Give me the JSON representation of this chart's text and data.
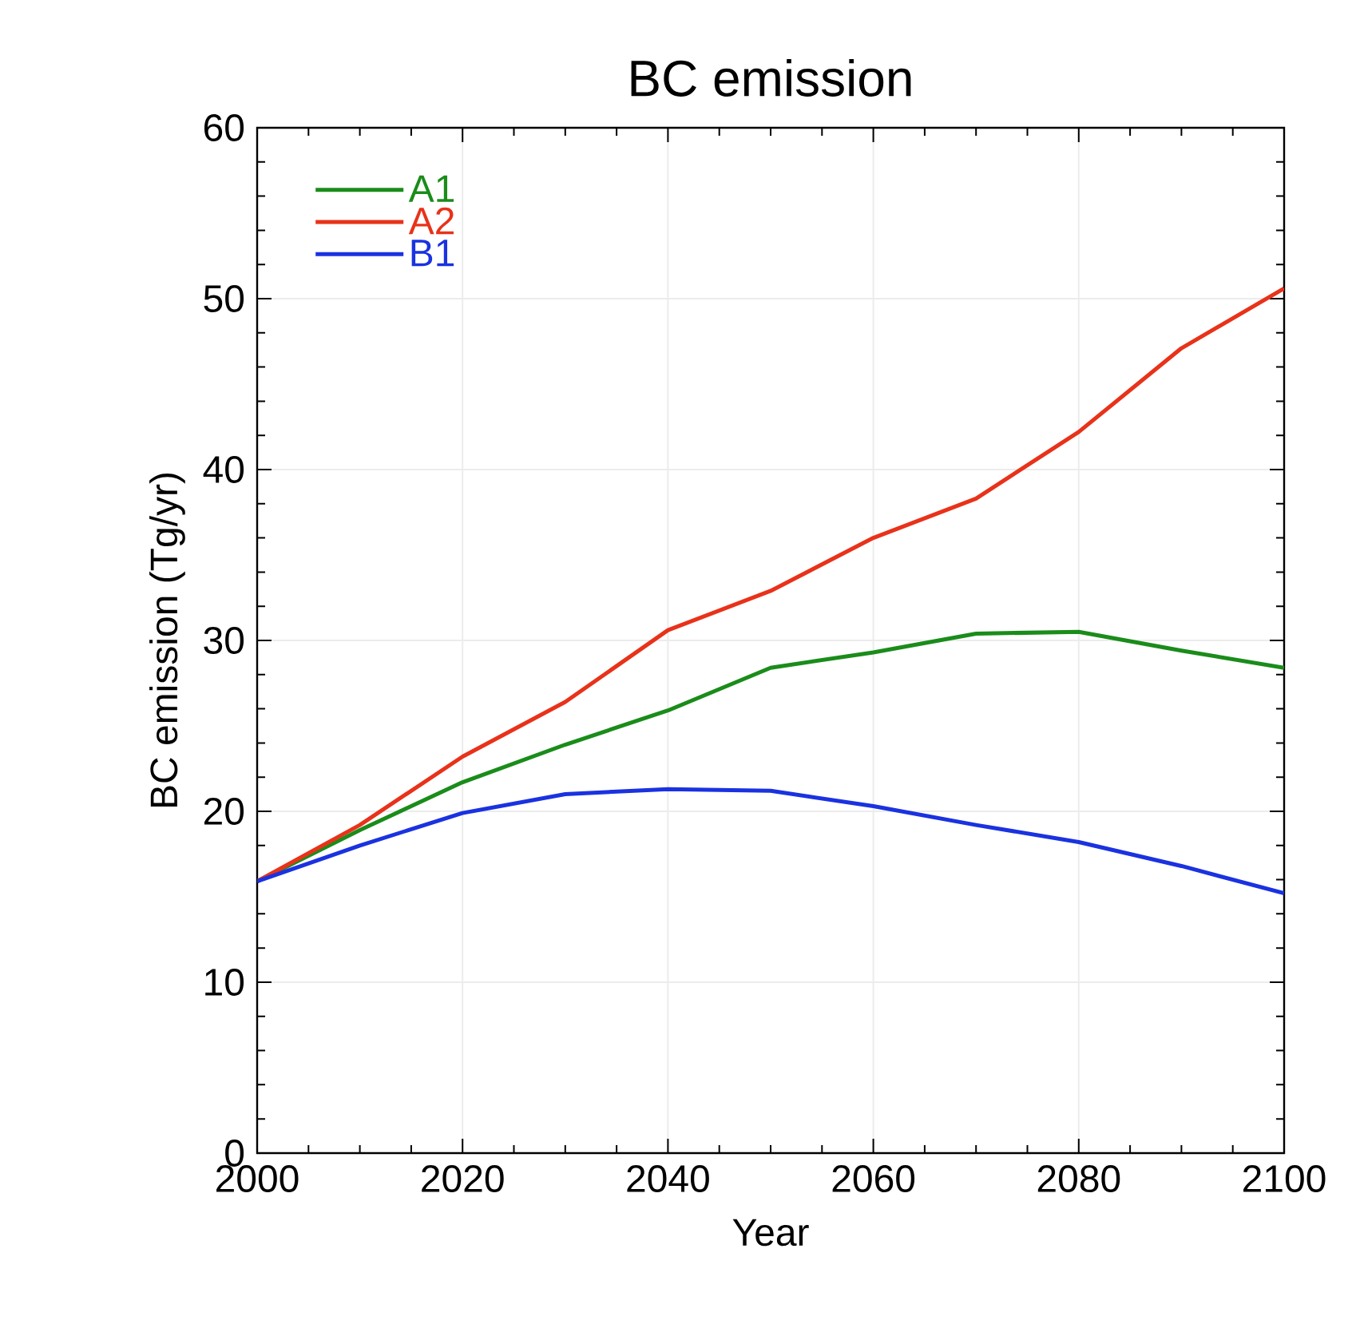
{
  "chart_data": {
    "type": "line",
    "title": "BC emission",
    "xlabel": "Year",
    "ylabel": "BC emission (Tg/yr)",
    "x": [
      2000,
      2010,
      2020,
      2030,
      2040,
      2050,
      2060,
      2070,
      2080,
      2090,
      2100
    ],
    "series": [
      {
        "name": "A1",
        "color": "#1a8c1a",
        "values": [
          15.9,
          18.9,
          21.7,
          23.9,
          25.9,
          28.4,
          29.3,
          30.4,
          30.5,
          29.4,
          28.4
        ]
      },
      {
        "name": "A2",
        "color": "#e8321a",
        "values": [
          15.9,
          19.2,
          23.2,
          26.4,
          30.6,
          32.9,
          36.0,
          38.3,
          42.2,
          47.1,
          50.6
        ]
      },
      {
        "name": "B1",
        "color": "#1a32e0",
        "values": [
          15.9,
          18.0,
          19.9,
          21.0,
          21.3,
          21.2,
          20.3,
          19.2,
          18.2,
          16.8,
          15.2
        ]
      }
    ],
    "xlim": [
      2000,
      2100
    ],
    "xticks": [
      2000,
      2020,
      2040,
      2060,
      2080,
      2100
    ],
    "ylim": [
      0,
      60
    ],
    "yticks": [
      0,
      10,
      20,
      30,
      40,
      50,
      60
    ],
    "grid": true,
    "legend": "top left",
    "marker": "none",
    "line_style": "solid"
  }
}
